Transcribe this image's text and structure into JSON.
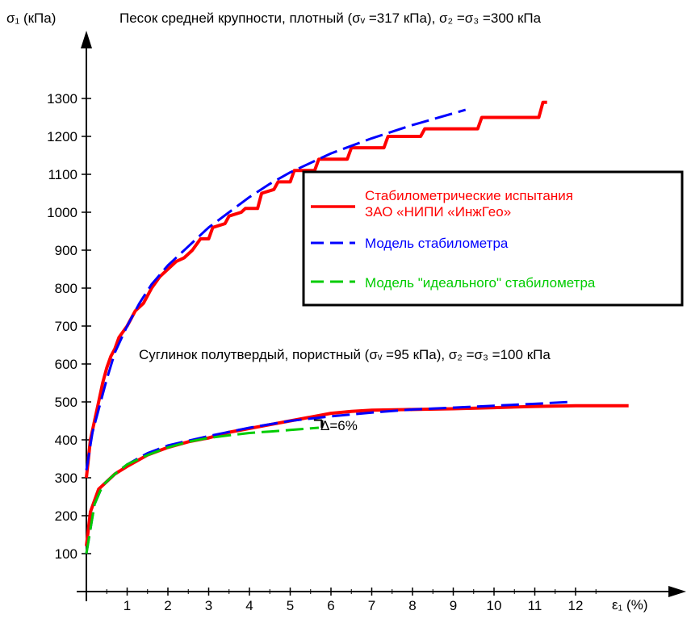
{
  "chart_data": {
    "type": "line",
    "title": "Песок средней крупности, плотный (σᵥ =317 кПа), σ₂ =σ₃ =300 кПа",
    "subtitle": "Суглинок полутвердый, пористный (σᵥ =95 кПа), σ₂ =σ₃ =100 кПа",
    "ylabel": "σ₁ (кПа)",
    "xlabel": "ε₁ (%)",
    "xlim": [
      0,
      13.5
    ],
    "ylim": [
      0,
      1350
    ],
    "x_ticks": [
      "1",
      "2",
      "3",
      "4",
      "5",
      "6",
      "7",
      "8",
      "9",
      "10",
      "11",
      "12"
    ],
    "y_ticks": [
      "100",
      "200",
      "300",
      "400",
      "500",
      "600",
      "700",
      "800",
      "900",
      "1000",
      "1100",
      "1200",
      "1300"
    ],
    "annotation": "Δ=6%",
    "legend": {
      "position": "right",
      "items": [
        {
          "label": "Стабилометрические испытания ЗАО «НИПИ «ИнжГео»",
          "color": "#ff0000",
          "style": "solid"
        },
        {
          "label": "Модель стабилометра",
          "color": "#0000ff",
          "style": "dashed"
        },
        {
          "label": "Модель \"идеального\" стабилометра",
          "color": "#00cc00",
          "style": "dashed"
        }
      ]
    },
    "series": [
      {
        "group": "sand",
        "kind": "test",
        "color": "#ff0000",
        "dash": false,
        "points": [
          [
            0,
            300
          ],
          [
            0.05,
            350
          ],
          [
            0.1,
            400
          ],
          [
            0.2,
            450
          ],
          [
            0.3,
            500
          ],
          [
            0.4,
            550
          ],
          [
            0.5,
            590
          ],
          [
            0.6,
            620
          ],
          [
            0.7,
            640
          ],
          [
            0.8,
            670
          ],
          [
            1.0,
            700
          ],
          [
            1.2,
            740
          ],
          [
            1.4,
            760
          ],
          [
            1.6,
            800
          ],
          [
            1.8,
            830
          ],
          [
            2.0,
            850
          ],
          [
            2.2,
            870
          ],
          [
            2.4,
            880
          ],
          [
            2.6,
            900
          ],
          [
            2.8,
            930
          ],
          [
            3.0,
            930
          ],
          [
            3.1,
            960
          ],
          [
            3.4,
            970
          ],
          [
            3.5,
            990
          ],
          [
            3.8,
            1000
          ],
          [
            3.9,
            1010
          ],
          [
            4.2,
            1010
          ],
          [
            4.3,
            1050
          ],
          [
            4.6,
            1060
          ],
          [
            4.7,
            1080
          ],
          [
            5.0,
            1080
          ],
          [
            5.1,
            1110
          ],
          [
            5.6,
            1110
          ],
          [
            5.7,
            1140
          ],
          [
            6.4,
            1140
          ],
          [
            6.5,
            1170
          ],
          [
            7.3,
            1170
          ],
          [
            7.4,
            1200
          ],
          [
            8.2,
            1200
          ],
          [
            8.3,
            1220
          ],
          [
            9.6,
            1220
          ],
          [
            9.7,
            1250
          ],
          [
            11.1,
            1250
          ],
          [
            11.2,
            1290
          ],
          [
            11.3,
            1290
          ]
        ]
      },
      {
        "group": "sand",
        "kind": "model",
        "color": "#0000ff",
        "dash": true,
        "points": [
          [
            0,
            320
          ],
          [
            0.15,
            420
          ],
          [
            0.3,
            480
          ],
          [
            0.5,
            560
          ],
          [
            0.7,
            630
          ],
          [
            1.0,
            700
          ],
          [
            1.3,
            760
          ],
          [
            1.6,
            810
          ],
          [
            2.0,
            860
          ],
          [
            2.5,
            910
          ],
          [
            3.0,
            960
          ],
          [
            3.5,
            1000
          ],
          [
            4.0,
            1040
          ],
          [
            4.5,
            1075
          ],
          [
            5.0,
            1105
          ],
          [
            6.0,
            1155
          ],
          [
            7.0,
            1195
          ],
          [
            8.0,
            1230
          ],
          [
            9.3,
            1270
          ]
        ]
      },
      {
        "group": "loam",
        "kind": "test",
        "color": "#ff0000",
        "dash": false,
        "points": [
          [
            0,
            120
          ],
          [
            0.1,
            210
          ],
          [
            0.2,
            240
          ],
          [
            0.3,
            270
          ],
          [
            0.5,
            290
          ],
          [
            0.7,
            310
          ],
          [
            1.0,
            330
          ],
          [
            1.5,
            360
          ],
          [
            2.0,
            380
          ],
          [
            2.5,
            395
          ],
          [
            3.0,
            405
          ],
          [
            3.5,
            420
          ],
          [
            4.0,
            430
          ],
          [
            4.5,
            440
          ],
          [
            5.0,
            450
          ],
          [
            5.5,
            460
          ],
          [
            6.0,
            470
          ],
          [
            6.5,
            475
          ],
          [
            7.0,
            478
          ],
          [
            8.0,
            480
          ],
          [
            9.0,
            482
          ],
          [
            10.0,
            485
          ],
          [
            11.0,
            488
          ],
          [
            12.0,
            490
          ],
          [
            13.3,
            490
          ]
        ]
      },
      {
        "group": "loam",
        "kind": "model",
        "color": "#0000ff",
        "dash": true,
        "points": [
          [
            0,
            100
          ],
          [
            0.2,
            230
          ],
          [
            0.4,
            280
          ],
          [
            0.7,
            310
          ],
          [
            1.0,
            335
          ],
          [
            1.5,
            365
          ],
          [
            2.0,
            385
          ],
          [
            3.0,
            410
          ],
          [
            4.0,
            432
          ],
          [
            5.0,
            450
          ],
          [
            6.0,
            462
          ],
          [
            7.0,
            472
          ],
          [
            8.0,
            480
          ],
          [
            9.0,
            485
          ],
          [
            10.0,
            490
          ],
          [
            11.0,
            495
          ],
          [
            11.9,
            500
          ]
        ]
      },
      {
        "group": "loam",
        "kind": "ideal",
        "color": "#00cc00",
        "dash": true,
        "points": [
          [
            0,
            100
          ],
          [
            0.2,
            230
          ],
          [
            0.4,
            280
          ],
          [
            0.7,
            310
          ],
          [
            1.0,
            335
          ],
          [
            1.5,
            360
          ],
          [
            2.0,
            380
          ],
          [
            2.5,
            395
          ],
          [
            3.0,
            405
          ],
          [
            3.5,
            412
          ],
          [
            4.0,
            418
          ],
          [
            4.5,
            422
          ],
          [
            5.0,
            426
          ],
          [
            5.7,
            432
          ]
        ]
      }
    ]
  }
}
